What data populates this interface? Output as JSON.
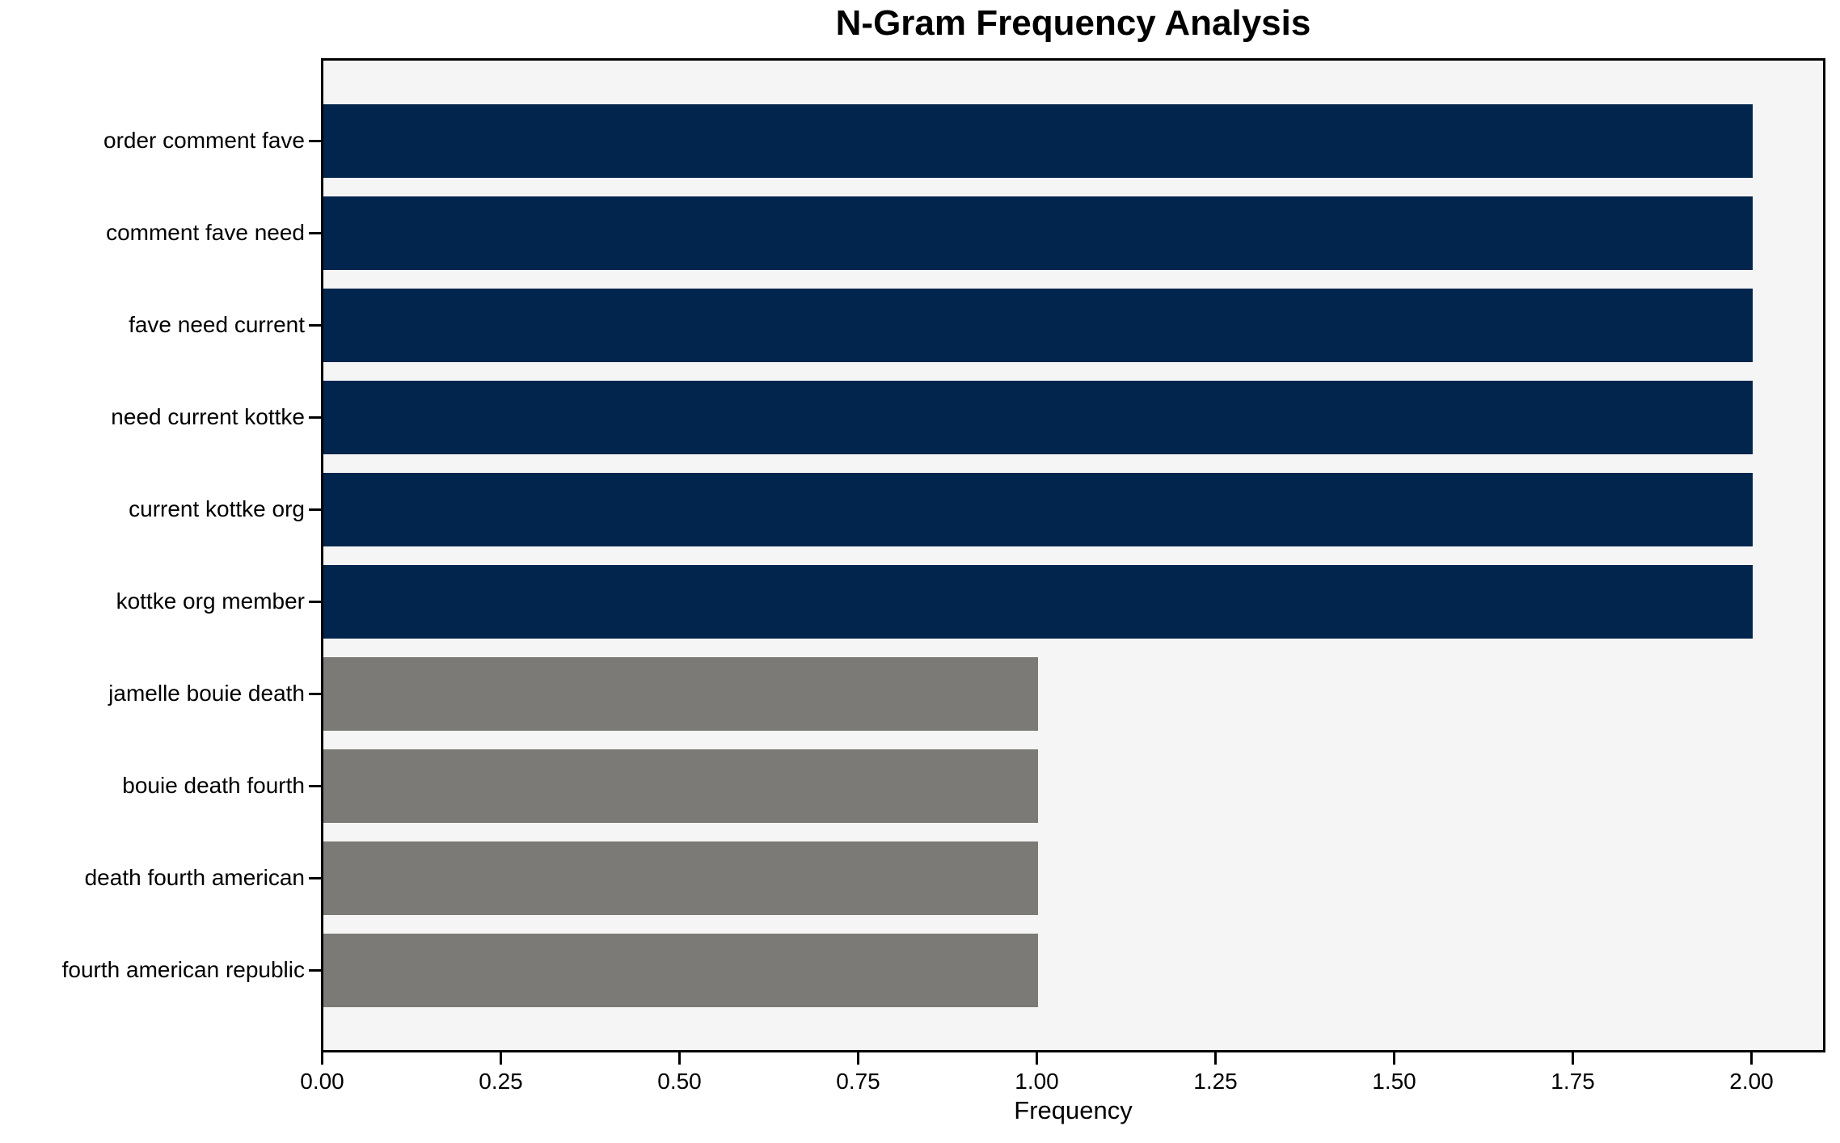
{
  "chart_data": {
    "type": "bar",
    "orientation": "horizontal",
    "title": "N-Gram Frequency Analysis",
    "xlabel": "Frequency",
    "ylabel": "",
    "categories": [
      "order comment fave",
      "comment fave need",
      "fave need current",
      "need current kottke",
      "current kottke org",
      "kottke org member",
      "jamelle bouie death",
      "bouie death fourth",
      "death fourth american",
      "fourth american republic"
    ],
    "values": [
      2,
      2,
      2,
      2,
      2,
      2,
      1,
      1,
      1,
      1
    ],
    "bar_colors": [
      "#02254d",
      "#02254d",
      "#02254d",
      "#02254d",
      "#02254d",
      "#02254d",
      "#7b7a77",
      "#7b7a77",
      "#7b7a77",
      "#7b7a77"
    ],
    "xlim": [
      0,
      2.1
    ],
    "xticks": [
      "0.00",
      "0.25",
      "0.50",
      "0.75",
      "1.00",
      "1.25",
      "1.50",
      "1.75",
      "2.00"
    ],
    "xtick_step_value": 0.25,
    "grid": false,
    "legend_position": "none",
    "colors": {
      "bar_high": "#02254d",
      "bar_low": "#7b7a77",
      "plot_background": "#f5f5f5",
      "figure_background": "#ffffff",
      "text": "#000000"
    }
  }
}
